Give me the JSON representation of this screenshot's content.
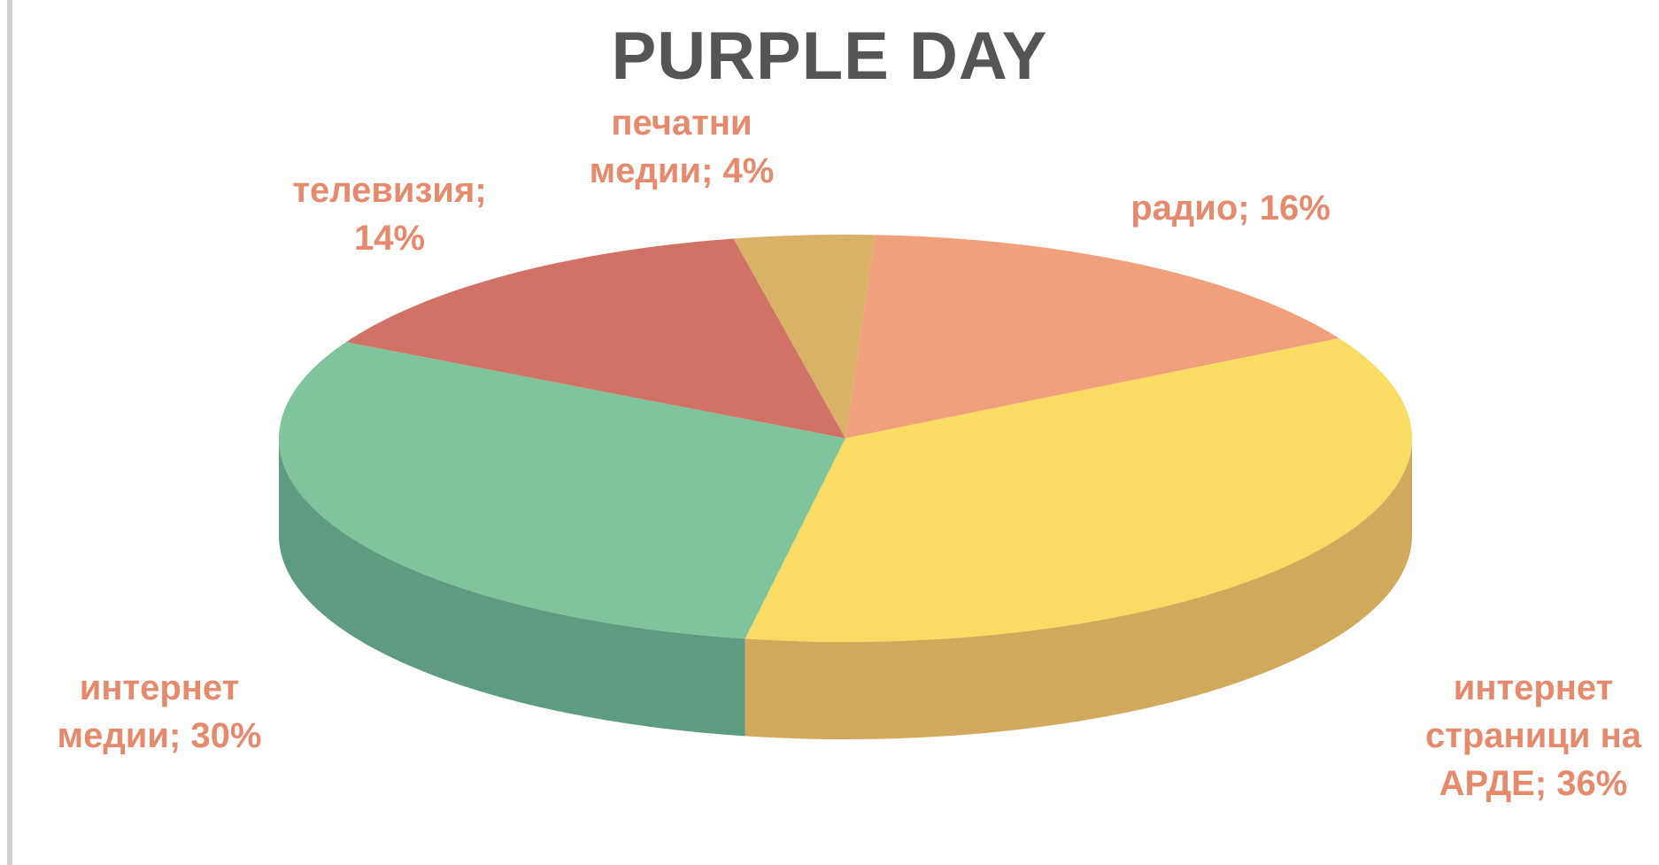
{
  "chart_data": {
    "type": "pie",
    "title": "PURPLE DAY",
    "slices": [
      {
        "label": "радио",
        "value": 16,
        "color": "#f0a07a",
        "side": "#c77e5b",
        "lines": [
          "радио; 16%"
        ]
      },
      {
        "label": "интернет страници на АРДЕ",
        "value": 36,
        "color": "#fadb63",
        "side": "#d1a95d",
        "lines": [
          "интернет",
          "страници на",
          "АРДЕ; 36%"
        ]
      },
      {
        "label": "интернет медии",
        "value": 30,
        "color": "#7fc49c",
        "side": "#5e9c82",
        "lines": [
          "интернет",
          "медии; 30%"
        ]
      },
      {
        "label": "телевизия",
        "value": 14,
        "color": "#d17266",
        "side": "#a95a50",
        "lines": [
          "телевизия;",
          "14%"
        ]
      },
      {
        "label": "печатни медии",
        "value": 4,
        "color": "#d8b267",
        "side": "#b08c4e",
        "lines": [
          "печатни",
          "медии; 4%"
        ]
      }
    ],
    "label_color": "#e58a6c",
    "legend": "none"
  }
}
